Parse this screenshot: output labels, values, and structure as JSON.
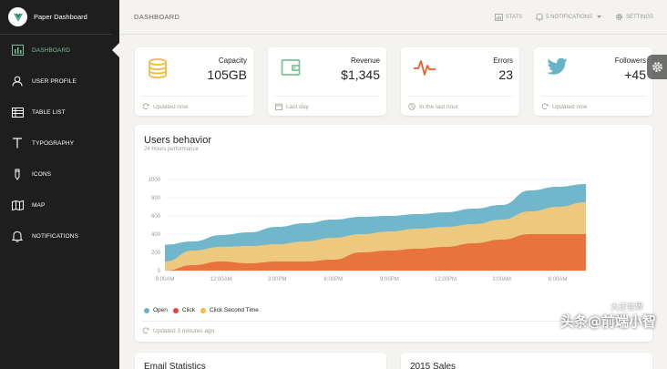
{
  "brand": {
    "name": "Paper Dashboard"
  },
  "sidebar": {
    "items": [
      {
        "label": "DASHBOARD",
        "icon": "bar-chart-icon",
        "active": true
      },
      {
        "label": "USER PROFILE",
        "icon": "user-icon",
        "active": false
      },
      {
        "label": "TABLE LIST",
        "icon": "table-list-icon",
        "active": false
      },
      {
        "label": "TYPOGRAPHY",
        "icon": "typography-icon",
        "active": false
      },
      {
        "label": "ICONS",
        "icon": "pencil-icon",
        "active": false
      },
      {
        "label": "MAP",
        "icon": "map-icon",
        "active": false
      },
      {
        "label": "NOTIFICATIONS",
        "icon": "bell-icon",
        "active": false
      }
    ]
  },
  "topbar": {
    "title": "DASHBOARD",
    "stats_label": "STATS",
    "notifications_label": "5 NOTIFICATIONS",
    "settings_label": "SETTINGS"
  },
  "stats": [
    {
      "label": "Capacity",
      "value": "105GB",
      "footer": "Updated now",
      "icon": "database-icon",
      "color": "#f3bb45"
    },
    {
      "label": "Revenue",
      "value": "$1,345",
      "footer": "Last day",
      "icon": "wallet-icon",
      "color": "#7ac29a"
    },
    {
      "label": "Errors",
      "value": "23",
      "footer": "In the last hour",
      "icon": "pulse-icon",
      "color": "#eb5e28"
    },
    {
      "label": "Followers",
      "value": "+45",
      "footer": "Updated now",
      "icon": "twitter-icon",
      "color": "#68b3c8"
    }
  ],
  "users_chart": {
    "title": "Users behavior",
    "subtitle": "24 Hours performance",
    "footer": "Updated 3 minutes ago"
  },
  "bottom": {
    "email_title": "Email Statistics",
    "sales_title": "2015 Sales"
  },
  "watermark": {
    "main": "头条@前端小智",
    "small": "大迁世界"
  },
  "chart_data": {
    "type": "area",
    "x": [
      "9:00AM",
      "",
      "12:00AM",
      "",
      "3:00PM",
      "",
      "6:00PM",
      "",
      "9:00PM",
      "",
      "12:00PM",
      "",
      "3:00AM",
      "",
      "6:00AM",
      ""
    ],
    "xticks": [
      "9:00AM",
      "12:00AM",
      "3:00PM",
      "6:00PM",
      "9:00PM",
      "12:00PM",
      "3:00AM",
      "6:00AM"
    ],
    "ylim": [
      0,
      1000
    ],
    "yticks": [
      0,
      200,
      400,
      600,
      800,
      1000
    ],
    "series": [
      {
        "name": "Open",
        "color": "#68b3c8",
        "values": [
          285,
          320,
          390,
          420,
          480,
          520,
          560,
          590,
          600,
          620,
          640,
          680,
          720,
          880,
          920,
          950
        ]
      },
      {
        "name": "Click Second Time",
        "color": "#f3c87a",
        "values": [
          100,
          220,
          260,
          270,
          290,
          320,
          360,
          400,
          430,
          460,
          480,
          510,
          560,
          650,
          700,
          750
        ]
      },
      {
        "name": "Click",
        "color": "#e96f3a",
        "values": [
          0,
          60,
          100,
          80,
          100,
          100,
          120,
          200,
          220,
          240,
          260,
          300,
          340,
          400,
          400,
          400
        ]
      }
    ],
    "legend_order": [
      "Open",
      "Click",
      "Click Second Time"
    ],
    "legend_colors": [
      "#68b3c8",
      "#e96f3a",
      "#f3c87a"
    ],
    "legend_position": "bottom-left",
    "grid": true
  }
}
